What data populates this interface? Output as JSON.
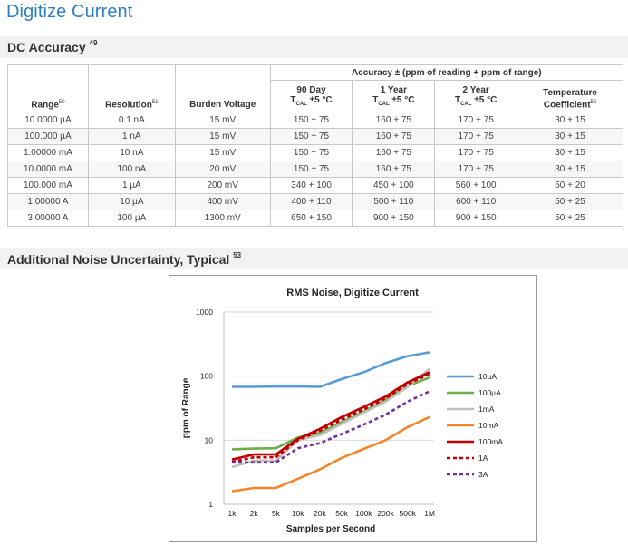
{
  "page_title": "Digitize Current",
  "dc_accuracy": {
    "title": "DC Accuracy",
    "title_footnote": "49",
    "group_header": "Accuracy ± (ppm of reading + ppm of range)",
    "columns": {
      "range": "Range",
      "range_fn": "50",
      "resolution": "Resolution",
      "resolution_fn": "51",
      "burden": "Burden Voltage",
      "day90_line1": "90 Day",
      "year1_line1": "1 Year",
      "year2_line1": "2 Year",
      "tcal_prefix": "T",
      "tcal_sub": "CAL",
      "tcal_suffix": " ±5 °C",
      "temp_line1": "Temperature",
      "temp_line2": "Coefficient",
      "temp_fn": "52"
    },
    "rows": [
      [
        "10.0000 µA",
        "0.1 nA",
        "15 mV",
        "150 + 75",
        "160 + 75",
        "170 + 75",
        "30 + 15"
      ],
      [
        "100.000 µA",
        "1 nA",
        "15 mV",
        "150 + 75",
        "160 + 75",
        "170 + 75",
        "30 + 15"
      ],
      [
        "1.00000 mA",
        "10 nA",
        "15 mV",
        "150 + 75",
        "160 + 75",
        "170 + 75",
        "30 + 15"
      ],
      [
        "10.0000 mA",
        "100 nA",
        "20 mV",
        "150 + 75",
        "160 + 75",
        "170 + 75",
        "30 + 15"
      ],
      [
        "100.000 mA",
        "1 µA",
        "200 mV",
        "340 + 100",
        "450 + 100",
        "560 + 100",
        "50 + 20"
      ],
      [
        "1.00000 A",
        "10 µA",
        "400 mV",
        "400 + 110",
        "500 + 110",
        "600 + 110",
        "50 + 25"
      ],
      [
        "3.00000 A",
        "100 µA",
        "1300 mV",
        "650 + 150",
        "900 + 150",
        "900 + 150",
        "50 + 25"
      ]
    ]
  },
  "noise": {
    "title": "Additional Noise Uncertainty, Typical",
    "title_footnote": "53"
  },
  "chart_data": {
    "type": "line",
    "title": "RMS Noise, Digitize Current",
    "xlabel": "Samples per Second",
    "ylabel": "ppm of Range",
    "y_scale": "log",
    "ylim": [
      1,
      1000
    ],
    "y_ticks": [
      "1",
      "10",
      "100",
      "1000"
    ],
    "x": [
      "1k",
      "2k",
      "5k",
      "10k",
      "20k",
      "50k",
      "100k",
      "200k",
      "500k",
      "1M"
    ],
    "grid": "horizontal",
    "legend_position": "right",
    "series": [
      {
        "name": "10µA",
        "color": "#5b9bd5",
        "dash": "solid",
        "values": [
          68,
          68,
          69,
          69,
          68,
          90,
          115,
          160,
          205,
          235
        ]
      },
      {
        "name": "100µA",
        "color": "#70ad47",
        "dash": "solid",
        "values": [
          7.2,
          7.4,
          7.5,
          11,
          13,
          19,
          28,
          43,
          70,
          95
        ]
      },
      {
        "name": "1mA",
        "color": "#bfbfbf",
        "dash": "solid",
        "values": [
          3.8,
          4.8,
          4.8,
          10,
          12,
          18,
          27,
          40,
          68,
          130
        ]
      },
      {
        "name": "10mA",
        "color": "#f4862a",
        "dash": "solid",
        "values": [
          1.6,
          1.8,
          1.8,
          2.5,
          3.5,
          5.3,
          7.3,
          10,
          16,
          23
        ]
      },
      {
        "name": "100mA",
        "color": "#c00000",
        "dash": "solid",
        "values": [
          5,
          6,
          6,
          10.5,
          15,
          23,
          33,
          48,
          80,
          115
        ]
      },
      {
        "name": "1A",
        "color": "#c00000",
        "dash": "dashed",
        "values": [
          4.6,
          5.4,
          5.4,
          10,
          14,
          21,
          30,
          45,
          75,
          108
        ]
      },
      {
        "name": "3A",
        "color": "#7030a0",
        "dash": "dashed",
        "values": [
          4.5,
          4.5,
          4.5,
          7.5,
          9,
          12.5,
          17.5,
          25,
          40,
          58
        ]
      }
    ]
  }
}
